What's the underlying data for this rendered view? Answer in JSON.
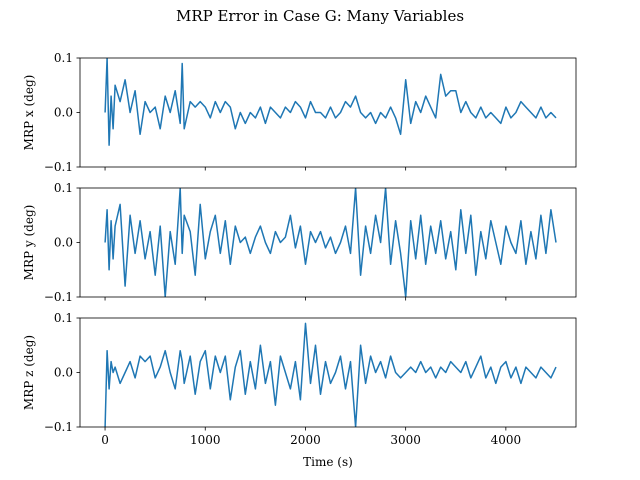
{
  "title": "MRP Error in Case G: Many Variables",
  "chart_data": {
    "type": "line",
    "title": "MRP Error in Case G: Many Variables",
    "xlabel": "Time (s)",
    "xlim": [
      -250,
      4700
    ],
    "x_ticks": [
      0,
      1000,
      2000,
      3000,
      4000
    ],
    "x_tick_labels": [
      "0",
      "1000",
      "2000",
      "3000",
      "4000"
    ],
    "grid": false,
    "panels": [
      {
        "ylabel": "MRP x (deg)",
        "ylim": [
          -0.1,
          0.1
        ],
        "y_ticks": [
          -0.1,
          0.0,
          0.1
        ],
        "y_tick_labels": [
          "−0.1",
          "0.0",
          "0.1"
        ],
        "series": [
          {
            "color": "#1f77b4",
            "x": [
              0,
              20,
              40,
              60,
              80,
              100,
              150,
              200,
              250,
              300,
              350,
              400,
              450,
              500,
              550,
              600,
              650,
              700,
              750,
              770,
              790,
              850,
              900,
              950,
              1000,
              1050,
              1100,
              1150,
              1200,
              1250,
              1300,
              1350,
              1400,
              1450,
              1500,
              1550,
              1600,
              1650,
              1700,
              1750,
              1800,
              1850,
              1900,
              1950,
              2000,
              2050,
              2100,
              2150,
              2200,
              2250,
              2300,
              2350,
              2400,
              2450,
              2500,
              2550,
              2600,
              2650,
              2700,
              2750,
              2800,
              2850,
              2900,
              2950,
              3000,
              3050,
              3100,
              3150,
              3200,
              3250,
              3300,
              3350,
              3400,
              3450,
              3500,
              3550,
              3600,
              3650,
              3700,
              3750,
              3800,
              3850,
              3900,
              3950,
              4000,
              4050,
              4100,
              4150,
              4200,
              4250,
              4300,
              4350,
              4400,
              4450,
              4500
            ],
            "values": [
              0.0,
              0.1,
              -0.06,
              0.03,
              -0.03,
              0.05,
              0.02,
              0.06,
              0.0,
              0.04,
              -0.04,
              0.02,
              0.0,
              0.01,
              -0.03,
              0.03,
              0.0,
              0.04,
              -0.02,
              0.09,
              -0.03,
              0.02,
              0.01,
              0.02,
              0.01,
              -0.01,
              0.02,
              0.0,
              0.02,
              0.01,
              -0.03,
              0.0,
              -0.02,
              0.0,
              -0.01,
              0.01,
              -0.02,
              0.01,
              0.0,
              -0.01,
              0.01,
              0.0,
              0.02,
              0.01,
              -0.01,
              0.02,
              0.0,
              0.0,
              -0.01,
              0.01,
              -0.01,
              0.0,
              0.02,
              0.01,
              0.03,
              0.0,
              -0.01,
              0.0,
              -0.02,
              0.0,
              -0.01,
              0.01,
              -0.01,
              -0.04,
              0.06,
              -0.02,
              0.02,
              0.0,
              0.03,
              0.01,
              -0.01,
              0.07,
              0.03,
              0.04,
              0.04,
              0.0,
              0.02,
              0.0,
              -0.01,
              0.01,
              -0.01,
              0.0,
              -0.01,
              -0.02,
              0.01,
              -0.01,
              0.0,
              0.02,
              0.01,
              0.0,
              -0.01,
              0.01,
              -0.01,
              0.0,
              -0.01
            ]
          }
        ]
      },
      {
        "ylabel": "MRP y (deg)",
        "ylim": [
          -0.1,
          0.1
        ],
        "y_ticks": [
          -0.1,
          0.0,
          0.1
        ],
        "y_tick_labels": [
          "−0.1",
          "0.0",
          "0.1"
        ],
        "series": [
          {
            "color": "#1f77b4",
            "x": [
              0,
              20,
              40,
              60,
              80,
              100,
              150,
              200,
              250,
              300,
              350,
              400,
              450,
              500,
              550,
              600,
              650,
              700,
              750,
              770,
              790,
              850,
              900,
              950,
              1000,
              1050,
              1100,
              1150,
              1200,
              1250,
              1300,
              1350,
              1400,
              1450,
              1500,
              1550,
              1600,
              1650,
              1700,
              1750,
              1800,
              1850,
              1900,
              1950,
              2000,
              2050,
              2100,
              2150,
              2200,
              2250,
              2300,
              2350,
              2400,
              2450,
              2500,
              2550,
              2600,
              2650,
              2700,
              2750,
              2800,
              2850,
              2900,
              2950,
              3000,
              3050,
              3100,
              3150,
              3200,
              3250,
              3300,
              3350,
              3400,
              3450,
              3500,
              3550,
              3600,
              3650,
              3700,
              3750,
              3800,
              3850,
              3900,
              3950,
              4000,
              4050,
              4100,
              4150,
              4200,
              4250,
              4300,
              4350,
              4400,
              4450,
              4500
            ],
            "values": [
              0.0,
              0.06,
              -0.05,
              0.04,
              -0.03,
              0.03,
              0.07,
              -0.08,
              0.05,
              -0.02,
              0.04,
              -0.03,
              0.02,
              -0.06,
              0.03,
              -0.1,
              0.02,
              -0.04,
              0.1,
              -0.02,
              0.05,
              0.02,
              -0.06,
              0.07,
              -0.03,
              0.02,
              0.05,
              -0.02,
              0.04,
              -0.04,
              0.03,
              0.0,
              0.01,
              -0.02,
              0.01,
              0.03,
              0.0,
              -0.02,
              0.02,
              0.0,
              0.01,
              0.05,
              -0.01,
              0.03,
              -0.04,
              0.02,
              0.0,
              0.02,
              -0.01,
              0.01,
              -0.02,
              0.0,
              0.03,
              -0.02,
              0.1,
              -0.06,
              0.03,
              -0.02,
              0.05,
              0.0,
              0.1,
              -0.04,
              0.04,
              -0.02,
              -0.1,
              0.04,
              -0.03,
              0.05,
              -0.04,
              0.03,
              -0.02,
              0.04,
              -0.03,
              0.02,
              -0.05,
              0.06,
              -0.02,
              0.05,
              -0.06,
              0.02,
              -0.03,
              0.04,
              0.0,
              -0.04,
              0.03,
              0.0,
              -0.02,
              0.04,
              -0.04,
              0.02,
              -0.03,
              0.05,
              -0.02,
              0.06,
              0.0
            ]
          }
        ]
      },
      {
        "ylabel": "MRP z (deg)",
        "ylim": [
          -0.1,
          0.1
        ],
        "y_ticks": [
          -0.1,
          0.0,
          0.1
        ],
        "y_tick_labels": [
          "−0.1",
          "0.0",
          "0.1"
        ],
        "series": [
          {
            "color": "#1f77b4",
            "x": [
              0,
              20,
              40,
              60,
              80,
              100,
              150,
              200,
              250,
              300,
              350,
              400,
              450,
              500,
              550,
              600,
              650,
              700,
              750,
              770,
              790,
              850,
              900,
              950,
              1000,
              1050,
              1100,
              1150,
              1200,
              1250,
              1300,
              1350,
              1400,
              1450,
              1500,
              1550,
              1600,
              1650,
              1700,
              1750,
              1800,
              1850,
              1900,
              1950,
              2000,
              2050,
              2100,
              2150,
              2200,
              2250,
              2300,
              2350,
              2400,
              2450,
              2500,
              2550,
              2600,
              2650,
              2700,
              2750,
              2800,
              2850,
              2900,
              2950,
              3000,
              3050,
              3100,
              3150,
              3200,
              3250,
              3300,
              3350,
              3400,
              3450,
              3500,
              3550,
              3600,
              3650,
              3700,
              3750,
              3800,
              3850,
              3900,
              3950,
              4000,
              4050,
              4100,
              4150,
              4200,
              4250,
              4300,
              4350,
              4400,
              4450,
              4500
            ],
            "values": [
              -0.1,
              0.04,
              -0.03,
              0.02,
              0.0,
              0.01,
              -0.02,
              0.0,
              0.02,
              -0.01,
              0.03,
              0.02,
              0.03,
              -0.01,
              0.01,
              0.04,
              0.0,
              -0.03,
              0.04,
              0.02,
              -0.02,
              0.03,
              -0.04,
              0.02,
              0.04,
              -0.03,
              0.03,
              0.0,
              0.03,
              -0.05,
              0.01,
              0.04,
              -0.04,
              0.02,
              -0.03,
              0.05,
              -0.02,
              0.02,
              -0.06,
              0.03,
              0.0,
              -0.03,
              0.02,
              -0.05,
              0.09,
              -0.02,
              0.05,
              -0.04,
              0.02,
              -0.02,
              0.0,
              0.03,
              -0.03,
              0.02,
              -0.1,
              0.05,
              -0.02,
              0.03,
              0.0,
              0.02,
              -0.01,
              0.03,
              0.0,
              -0.01,
              0.0,
              0.01,
              0.0,
              0.02,
              0.0,
              0.01,
              -0.01,
              0.01,
              0.0,
              0.02,
              0.01,
              0.0,
              0.02,
              -0.01,
              0.01,
              0.03,
              -0.01,
              0.01,
              -0.02,
              0.01,
              0.02,
              -0.01,
              0.01,
              -0.02,
              0.01,
              0.0,
              -0.01,
              0.01,
              0.0,
              -0.01,
              0.01
            ]
          }
        ]
      }
    ]
  }
}
